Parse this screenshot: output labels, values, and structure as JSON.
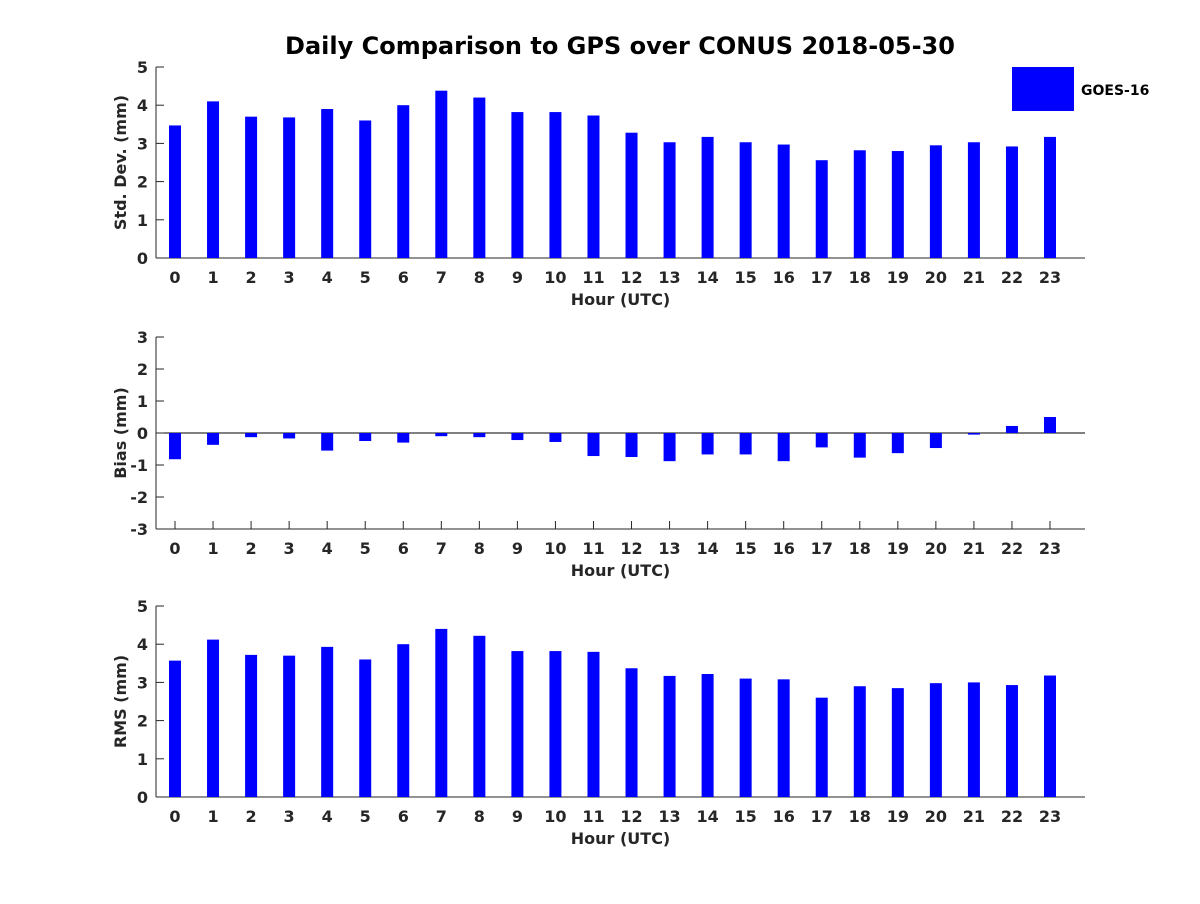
{
  "title": "Daily Comparison to GPS over CONUS 2018-05-30",
  "colors": {
    "bar": "#0000ff",
    "axis": "#262626"
  },
  "legend": {
    "label": "GOES-16",
    "position": "top-right"
  },
  "chart_data": [
    {
      "type": "bar",
      "title": "Daily Comparison to GPS over CONUS 2018-05-30",
      "xlabel": "Hour (UTC)",
      "ylabel": "Std. Dev. (mm)",
      "ylim": [
        0,
        5
      ],
      "yticks": [
        0,
        1,
        2,
        3,
        4,
        5
      ],
      "categories": [
        "0",
        "1",
        "2",
        "3",
        "4",
        "5",
        "6",
        "7",
        "8",
        "9",
        "10",
        "11",
        "12",
        "13",
        "14",
        "15",
        "16",
        "17",
        "18",
        "19",
        "20",
        "21",
        "22",
        "23"
      ],
      "series": [
        {
          "name": "GOES-16",
          "values": [
            3.47,
            4.1,
            3.7,
            3.68,
            3.9,
            3.6,
            4.0,
            4.38,
            4.2,
            3.82,
            3.82,
            3.73,
            3.28,
            3.03,
            3.17,
            3.03,
            2.97,
            2.56,
            2.82,
            2.8,
            2.95,
            3.03,
            2.92,
            3.17
          ]
        }
      ]
    },
    {
      "type": "bar",
      "title": "",
      "xlabel": "Hour (UTC)",
      "ylabel": "Bias (mm)",
      "ylim": [
        -3,
        3
      ],
      "yticks": [
        -3,
        -2,
        -1,
        0,
        1,
        2,
        3
      ],
      "categories": [
        "0",
        "1",
        "2",
        "3",
        "4",
        "5",
        "6",
        "7",
        "8",
        "9",
        "10",
        "11",
        "12",
        "13",
        "14",
        "15",
        "16",
        "17",
        "18",
        "19",
        "20",
        "21",
        "22",
        "23"
      ],
      "series": [
        {
          "name": "GOES-16",
          "values": [
            -0.82,
            -0.37,
            -0.13,
            -0.17,
            -0.55,
            -0.25,
            -0.3,
            -0.1,
            -0.13,
            -0.22,
            -0.28,
            -0.72,
            -0.75,
            -0.88,
            -0.67,
            -0.67,
            -0.88,
            -0.45,
            -0.77,
            -0.63,
            -0.47,
            -0.05,
            0.22,
            0.5
          ]
        }
      ]
    },
    {
      "type": "bar",
      "title": "",
      "xlabel": "Hour (UTC)",
      "ylabel": "RMS (mm)",
      "ylim": [
        0,
        5
      ],
      "yticks": [
        0,
        1,
        2,
        3,
        4,
        5
      ],
      "categories": [
        "0",
        "1",
        "2",
        "3",
        "4",
        "5",
        "6",
        "7",
        "8",
        "9",
        "10",
        "11",
        "12",
        "13",
        "14",
        "15",
        "16",
        "17",
        "18",
        "19",
        "20",
        "21",
        "22",
        "23"
      ],
      "series": [
        {
          "name": "GOES-16",
          "values": [
            3.57,
            4.12,
            3.72,
            3.7,
            3.93,
            3.6,
            4.0,
            4.4,
            4.22,
            3.82,
            3.82,
            3.8,
            3.37,
            3.17,
            3.22,
            3.1,
            3.08,
            2.6,
            2.9,
            2.85,
            2.98,
            3.0,
            2.93,
            3.18
          ]
        }
      ]
    }
  ]
}
